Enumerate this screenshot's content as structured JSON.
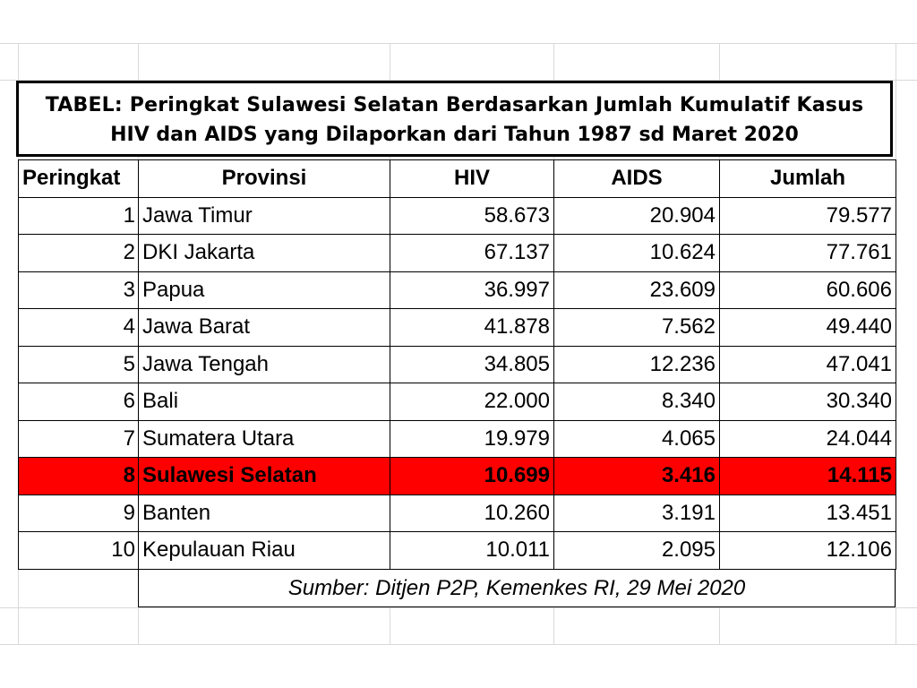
{
  "title": {
    "line1": "TABEL: Peringkat Sulawesi Selatan Berdasarkan Jumlah Kumulatif Kasus",
    "line2": "HIV dan AIDS yang Dilaporkan dari Tahun 1987 sd Maret 2020"
  },
  "table": {
    "headers": [
      "Peringkat",
      "Provinsi",
      "HIV",
      "AIDS",
      "Jumlah"
    ],
    "rows": [
      {
        "rank": "1",
        "province": "Jawa Timur",
        "hiv": "58.673",
        "aids": "20.904",
        "total": "79.577"
      },
      {
        "rank": "2",
        "province": "DKI Jakarta",
        "hiv": "67.137",
        "aids": "10.624",
        "total": "77.761"
      },
      {
        "rank": "3",
        "province": "Papua",
        "hiv": "36.997",
        "aids": "23.609",
        "total": "60.606"
      },
      {
        "rank": "4",
        "province": "Jawa Barat",
        "hiv": "41.878",
        "aids": "7.562",
        "total": "49.440"
      },
      {
        "rank": "5",
        "province": "Jawa Tengah",
        "hiv": "34.805",
        "aids": "12.236",
        "total": "47.041"
      },
      {
        "rank": "6",
        "province": "Bali",
        "hiv": "22.000",
        "aids": "8.340",
        "total": "30.340"
      },
      {
        "rank": "7",
        "province": "Sumatera Utara",
        "hiv": "19.979",
        "aids": "4.065",
        "total": "24.044"
      },
      {
        "rank": "8",
        "province": "Sulawesi Selatan",
        "hiv": "10.699",
        "aids": "3.416",
        "total": "14.115"
      },
      {
        "rank": "9",
        "province": "Banten",
        "hiv": "10.260",
        "aids": "3.191",
        "total": "13.451"
      },
      {
        "rank": "10",
        "province": "Kepulauan Riau",
        "hiv": "10.011",
        "aids": "2.095",
        "total": "12.106"
      }
    ],
    "highlight_color": "#ff0000"
  },
  "source": "Sumber: Ditjen P2P, Kemenkes RI, 29 Mei 2020"
}
